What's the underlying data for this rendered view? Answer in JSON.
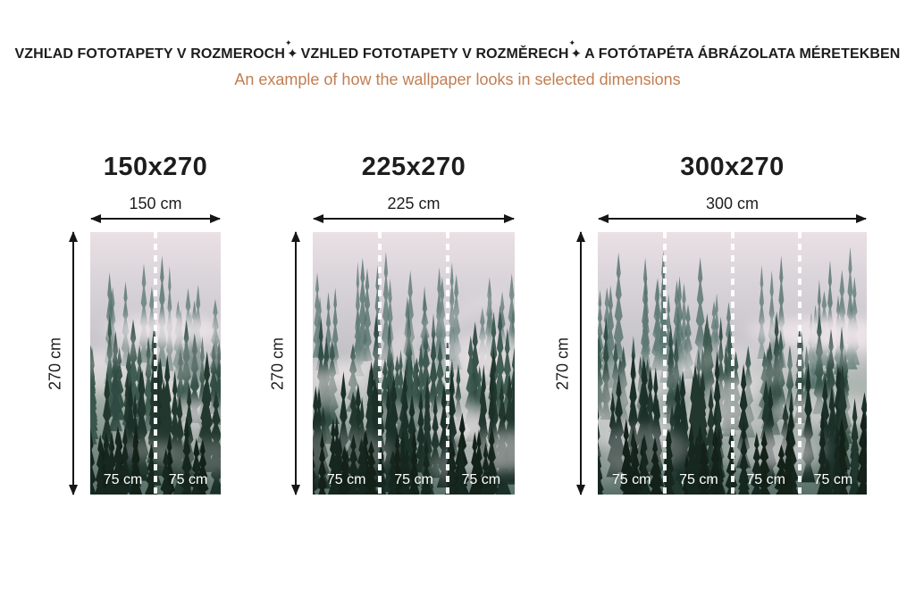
{
  "header": {
    "title_parts": [
      "VZHĽAD FOTOTAPETY V ROZMEROCH",
      "VZHLED FOTOTAPETY V ROZMĚRECH",
      "A FOTÓTAPÉTA ÁBRÁZOLATA MÉRETEKBEN"
    ],
    "separator": "✦",
    "subtitle": "An example of how the wallpaper looks in selected dimensions"
  },
  "colors": {
    "heading": "#1d1d1d",
    "accent": "#c27e52",
    "arrow": "#161616",
    "segment_label": "#ffffff"
  },
  "forest": {
    "sky_top": "#eae0e5",
    "sky_mid": "#d8d3d8",
    "haze": "#a9b3ae",
    "fog": "#efe6ea",
    "far_trees": "#5f7b74",
    "mid_trees": "#39564c",
    "near_trees": "#22382f",
    "deep_trees": "#16271f"
  },
  "panels": [
    {
      "title": "150x270",
      "width_label": "150 cm",
      "height_label": "270 cm",
      "segments": [
        "75 cm",
        "75 cm"
      ]
    },
    {
      "title": "225x270",
      "width_label": "225 cm",
      "height_label": "270 cm",
      "segments": [
        "75 cm",
        "75 cm",
        "75 cm"
      ]
    },
    {
      "title": "300x270",
      "width_label": "300 cm",
      "height_label": "270 cm",
      "segments": [
        "75 cm",
        "75 cm",
        "75 cm",
        "75 cm"
      ]
    }
  ]
}
